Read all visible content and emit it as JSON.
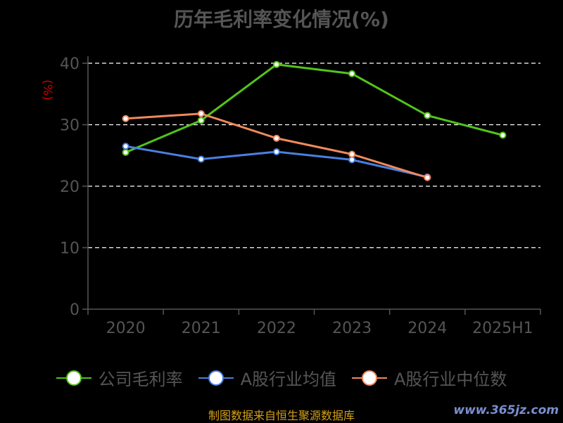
{
  "chart_data": {
    "type": "line",
    "title": "历年毛利率变化情况(%)",
    "ylabel": "(%)",
    "xlabel": "",
    "categories": [
      "2020",
      "2021",
      "2022",
      "2023",
      "2024",
      "2025H1"
    ],
    "ylim": [
      0,
      40
    ],
    "yticks": [
      0,
      10,
      20,
      30,
      40
    ],
    "grid": true,
    "legend_position": "bottom",
    "series": [
      {
        "name": "公司毛利率",
        "color": "#52c41a",
        "values": [
          25.5,
          30.7,
          39.8,
          38.3,
          31.5,
          28.3
        ]
      },
      {
        "name": "A股行业均值",
        "color": "#4a7fe0",
        "values": [
          26.5,
          24.4,
          25.6,
          24.3,
          21.5,
          null
        ]
      },
      {
        "name": "A股行业中位数",
        "color": "#f08a5d",
        "values": [
          31.0,
          31.8,
          27.8,
          25.2,
          21.4,
          null
        ]
      }
    ]
  },
  "footer": {
    "source": "制图数据来自恒生聚源数据库",
    "watermark": "www.365jz.com"
  }
}
